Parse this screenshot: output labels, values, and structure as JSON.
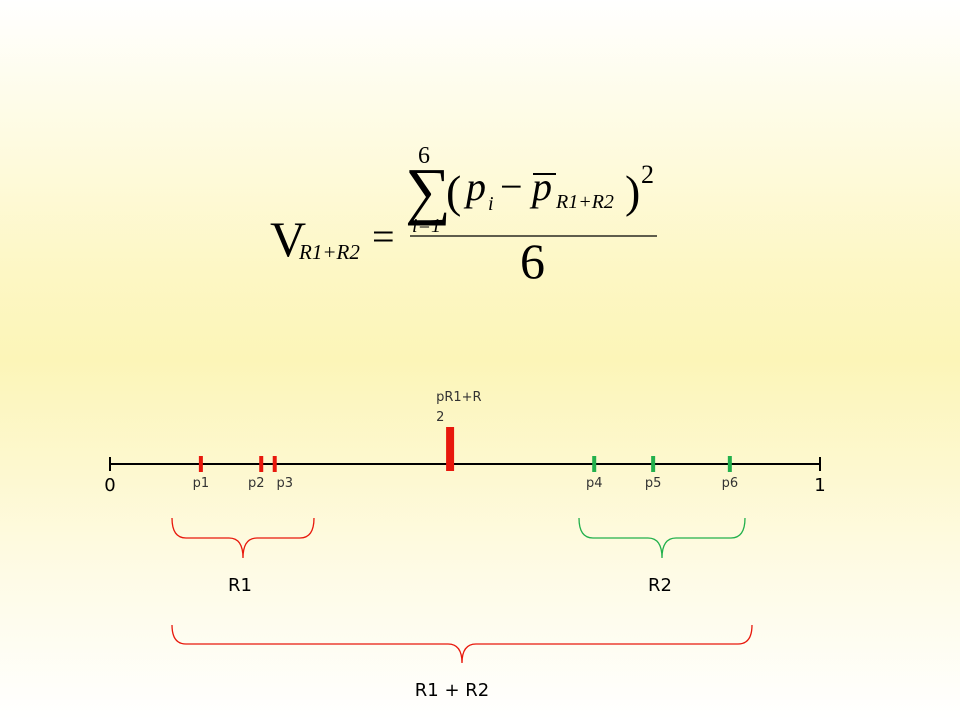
{
  "formula": {
    "lhs": "V",
    "lhs_sub": "R1+R2",
    "equals": "=",
    "sigma": "∑",
    "sum_top": "6",
    "sum_bottom": "i=1",
    "open": "(",
    "term_var": "p",
    "term_sub": "i",
    "minus": "−",
    "mean_var": "p",
    "mean_sub": "R1+R2",
    "close": ")",
    "exponent": "2",
    "denominator": "6"
  },
  "number_line": {
    "range": [
      0,
      1
    ],
    "points": [
      {
        "label": "p1",
        "value": 0.128,
        "color": "#e8180c"
      },
      {
        "label": "p2",
        "value": 0.213,
        "color": "#e8180c"
      },
      {
        "label": "p3",
        "value": 0.232,
        "color": "#e8180c"
      },
      {
        "label": "p4",
        "value": 0.682,
        "color": "#22b04c"
      },
      {
        "label": "p5",
        "value": 0.765,
        "color": "#22b04c"
      },
      {
        "label": "p6",
        "value": 0.873,
        "color": "#22b04c"
      }
    ],
    "mean": {
      "label": "pR1+R2",
      "value": 0.479,
      "color": "#e8180c"
    }
  },
  "groups": [
    {
      "label": "R1",
      "color": "#e8180c"
    },
    {
      "label": "R2",
      "color": "#22b04c"
    },
    {
      "label": "R1 + R2",
      "color": "#e8180c"
    }
  ]
}
